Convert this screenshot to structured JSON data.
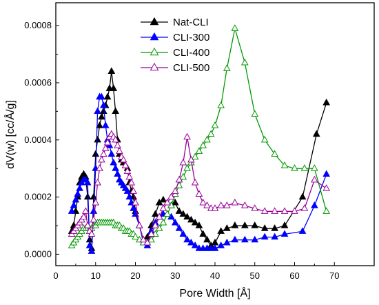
{
  "chart_data": {
    "type": "line",
    "xlabel": "Pore Width [Å]",
    "ylabel": "dV(w) [cc/Å/g]",
    "xlim": [
      0,
      80
    ],
    "ylim": [
      -4e-05,
      0.00088
    ],
    "xticks": [
      0,
      10,
      20,
      30,
      40,
      50,
      60,
      70
    ],
    "xtick_labels": [
      "0",
      "10",
      "20",
      "30",
      "40",
      "50",
      "60",
      "70"
    ],
    "yticks": [
      0.0,
      0.0002,
      0.0004,
      0.0006,
      0.0008
    ],
    "ytick_labels": [
      "0.0000",
      "0.0002",
      "0.0004",
      "0.0006",
      "0.0008"
    ],
    "legend_position": "top-center",
    "series": [
      {
        "name": "Nat-CLI",
        "color": "#000000",
        "marker": "filled-triangle",
        "x": [
          4.0,
          4.5,
          5.0,
          5.5,
          6.0,
          6.5,
          7.0,
          7.5,
          8.0,
          8.5,
          9.0,
          9.5,
          10.0,
          10.5,
          11.0,
          11.5,
          12.0,
          12.5,
          13.0,
          13.5,
          14.0,
          14.5,
          15.0,
          15.5,
          16.0,
          16.5,
          17.0,
          17.5,
          18.0,
          18.5,
          19.0,
          19.5,
          20.0,
          21.0,
          22.0,
          23.0,
          24.0,
          25.0,
          26.0,
          27.0,
          28.0,
          29.0,
          30.0,
          31.0,
          32.0,
          33.0,
          34.0,
          35.0,
          36.0,
          37.0,
          38.0,
          39.0,
          40.0,
          41.5,
          43.0,
          45.0,
          47.5,
          50.0,
          52.5,
          55.0,
          57.5,
          62.0,
          65.5,
          68.0
        ],
        "y": [
          8e-05,
          0.0001,
          0.00015,
          0.0002,
          0.00025,
          0.00027,
          0.00028,
          0.00027,
          0.0002,
          5e-05,
          2e-05,
          0.0002,
          0.00035,
          0.0004,
          0.00045,
          0.00048,
          0.0005,
          0.00052,
          0.00055,
          0.00058,
          0.00064,
          0.00058,
          0.0005,
          0.0004,
          0.00035,
          0.00033,
          0.00032,
          0.00031,
          0.0003,
          0.00025,
          0.00022,
          0.0002,
          0.00015,
          0.0001,
          5e-05,
          6e-05,
          0.0001,
          0.00014,
          0.00018,
          0.00019,
          0.00018,
          0.00017,
          0.00018,
          0.00015,
          0.00014,
          0.00013,
          0.00012,
          0.00011,
          0.0001,
          7e-05,
          5e-05,
          3e-05,
          4e-05,
          8e-05,
          9e-05,
          0.0001,
          0.0001,
          0.0001,
          9e-05,
          9e-05,
          0.0001,
          0.0002,
          0.00042,
          0.00053
        ]
      },
      {
        "name": "CLI-300",
        "color": "#0000ff",
        "marker": "filled-triangle",
        "x": [
          4.0,
          4.5,
          5.0,
          5.5,
          6.0,
          6.5,
          7.0,
          7.5,
          8.0,
          8.5,
          9.0,
          9.5,
          10.0,
          10.5,
          11.0,
          11.5,
          12.0,
          12.5,
          13.0,
          13.5,
          14.0,
          14.5,
          15.0,
          15.5,
          16.0,
          16.5,
          17.0,
          17.5,
          18.0,
          18.5,
          19.0,
          19.5,
          20.0,
          21.0,
          22.0,
          23.0,
          24.0,
          25.0,
          26.0,
          27.0,
          28.0,
          29.0,
          30.0,
          31.0,
          32.0,
          33.0,
          34.0,
          35.0,
          36.0,
          37.0,
          38.0,
          39.0,
          40.0,
          41.5,
          43.0,
          45.0,
          47.5,
          50.0,
          52.5,
          55.0,
          57.5,
          62.0,
          65.0,
          68.0
        ],
        "y": [
          0.00015,
          0.00017,
          0.00019,
          0.00021,
          0.00023,
          0.00025,
          0.00026,
          0.00026,
          0.00025,
          3e-05,
          1e-05,
          0.00015,
          0.0003,
          0.0005,
          0.00055,
          0.00055,
          0.00052,
          0.00045,
          0.0004,
          0.00038,
          0.00035,
          0.00032,
          0.0003,
          0.00028,
          0.00026,
          0.00025,
          0.00024,
          0.00023,
          0.00022,
          0.0002,
          0.00018,
          0.00016,
          0.00014,
          0.0001,
          4e-05,
          3e-05,
          8e-05,
          0.00011,
          0.00013,
          0.00014,
          0.00014,
          0.00013,
          0.00011,
          9e-05,
          7e-05,
          5e-05,
          4e-05,
          3e-05,
          2e-05,
          2e-05,
          2e-05,
          2e-05,
          2e-05,
          3e-05,
          4e-05,
          5e-05,
          5e-05,
          5e-05,
          6e-05,
          6e-05,
          7e-05,
          8e-05,
          0.00017,
          0.00028
        ]
      },
      {
        "name": "CLI-400",
        "color": "#009900",
        "marker": "hollow-triangle",
        "x": [
          4.0,
          4.5,
          5.0,
          5.5,
          6.0,
          6.5,
          7.0,
          7.5,
          8.0,
          8.5,
          9.0,
          9.5,
          10.0,
          10.5,
          11.0,
          11.5,
          12.0,
          12.5,
          13.0,
          13.5,
          14.0,
          14.5,
          15.0,
          15.5,
          16.0,
          16.5,
          17.0,
          17.5,
          18.0,
          18.5,
          19.0,
          19.5,
          20.0,
          21.0,
          22.0,
          23.0,
          24.0,
          25.0,
          26.0,
          27.0,
          28.0,
          29.0,
          30.0,
          31.0,
          32.0,
          33.0,
          34.0,
          35.0,
          36.0,
          37.0,
          38.0,
          39.0,
          40.0,
          41.5,
          43.0,
          45.0,
          47.5,
          50.0,
          52.5,
          55.0,
          57.5,
          60.0,
          62.5,
          65.0,
          68.0
        ],
        "y": [
          3e-05,
          4e-05,
          5e-05,
          6e-05,
          7e-05,
          8e-05,
          9e-05,
          9e-05,
          9e-05,
          9e-05,
          9e-05,
          0.0001,
          0.0001,
          0.00011,
          0.00011,
          0.00011,
          0.00011,
          0.00011,
          0.00011,
          0.00011,
          0.00011,
          0.00011,
          0.0001,
          0.0001,
          0.0001,
          9e-05,
          9e-05,
          8e-05,
          8e-05,
          8e-05,
          7e-05,
          7e-05,
          6e-05,
          5e-05,
          4e-05,
          4e-05,
          5e-05,
          7e-05,
          9e-05,
          0.00011,
          0.00014,
          0.00017,
          0.00021,
          0.00024,
          0.00027,
          0.0003,
          0.00032,
          0.00034,
          0.00036,
          0.00038,
          0.0004,
          0.00042,
          0.00045,
          0.00052,
          0.00065,
          0.00079,
          0.00067,
          0.00049,
          0.0004,
          0.00035,
          0.00031,
          0.0003,
          0.0003,
          0.0003,
          0.00015
        ]
      },
      {
        "name": "CLI-500",
        "color": "#990099",
        "marker": "hollow-triangle",
        "x": [
          4.0,
          4.5,
          5.0,
          5.5,
          6.0,
          6.5,
          7.0,
          7.5,
          8.0,
          8.5,
          9.0,
          9.5,
          10.0,
          10.5,
          11.0,
          11.5,
          12.0,
          12.5,
          13.0,
          13.5,
          14.0,
          14.5,
          15.0,
          15.5,
          16.0,
          16.5,
          17.0,
          17.5,
          18.0,
          18.5,
          19.0,
          19.5,
          20.0,
          21.0,
          22.0,
          23.0,
          24.0,
          25.0,
          26.0,
          27.0,
          28.0,
          29.0,
          30.0,
          31.0,
          32.0,
          33.0,
          34.0,
          35.0,
          36.0,
          37.0,
          38.0,
          39.0,
          40.0,
          41.5,
          43.0,
          45.0,
          47.5,
          50.0,
          52.5,
          55.0,
          57.5,
          60.0,
          62.5,
          65.0,
          68.0
        ],
        "y": [
          7e-05,
          8e-05,
          9e-05,
          0.0001,
          0.00011,
          0.00012,
          0.00013,
          0.00015,
          0.0001,
          8e-05,
          7e-05,
          0.00012,
          0.00018,
          0.00025,
          0.0003,
          0.00033,
          0.00035,
          0.00037,
          0.00039,
          0.00041,
          0.00042,
          0.00041,
          0.0004,
          0.00038,
          0.00036,
          0.00034,
          0.00033,
          0.00031,
          0.00029,
          0.00027,
          0.00025,
          0.00022,
          0.00018,
          0.0001,
          5e-05,
          4e-05,
          7e-05,
          0.0001,
          0.00013,
          0.00016,
          0.00018,
          0.0002,
          0.00022,
          0.00026,
          0.00032,
          0.00041,
          0.00033,
          0.00025,
          0.00021,
          0.00018,
          0.00017,
          0.00016,
          0.00016,
          0.00017,
          0.00017,
          0.00018,
          0.00017,
          0.00016,
          0.00015,
          0.00015,
          0.00015,
          0.00015,
          0.00016,
          0.00026,
          0.00023
        ]
      }
    ]
  }
}
